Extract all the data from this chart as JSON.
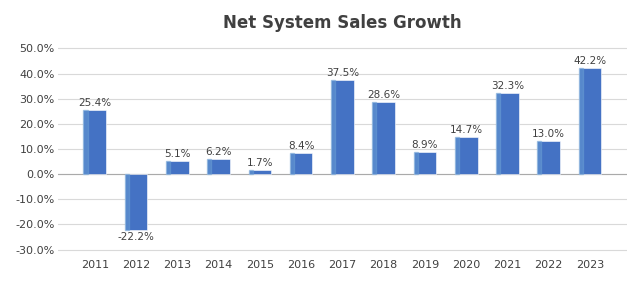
{
  "title": "Net System Sales Growth",
  "categories": [
    "2011",
    "2012",
    "2013",
    "2014",
    "2015",
    "2016",
    "2017",
    "2018",
    "2019",
    "2020",
    "2021",
    "2022",
    "2023"
  ],
  "values": [
    25.4,
    -22.2,
    5.1,
    6.2,
    1.7,
    8.4,
    37.5,
    28.6,
    8.9,
    14.7,
    32.3,
    13.0,
    42.2
  ],
  "bar_color": "#4472C4",
  "ylim": [
    -33,
    55
  ],
  "yticks": [
    -30.0,
    -20.0,
    -10.0,
    0.0,
    10.0,
    20.0,
    30.0,
    40.0,
    50.0
  ],
  "ytick_labels": [
    "-30.0%",
    "-20.0%",
    "-10.0%",
    "0.0%",
    "10.0%",
    "20.0%",
    "30.0%",
    "40.0%",
    "50.0%"
  ],
  "background_color": "#FFFFFF",
  "grid_color": "#D9D9D9",
  "title_fontsize": 12,
  "label_fontsize": 7.5,
  "tick_fontsize": 8,
  "title_color": "#404040"
}
